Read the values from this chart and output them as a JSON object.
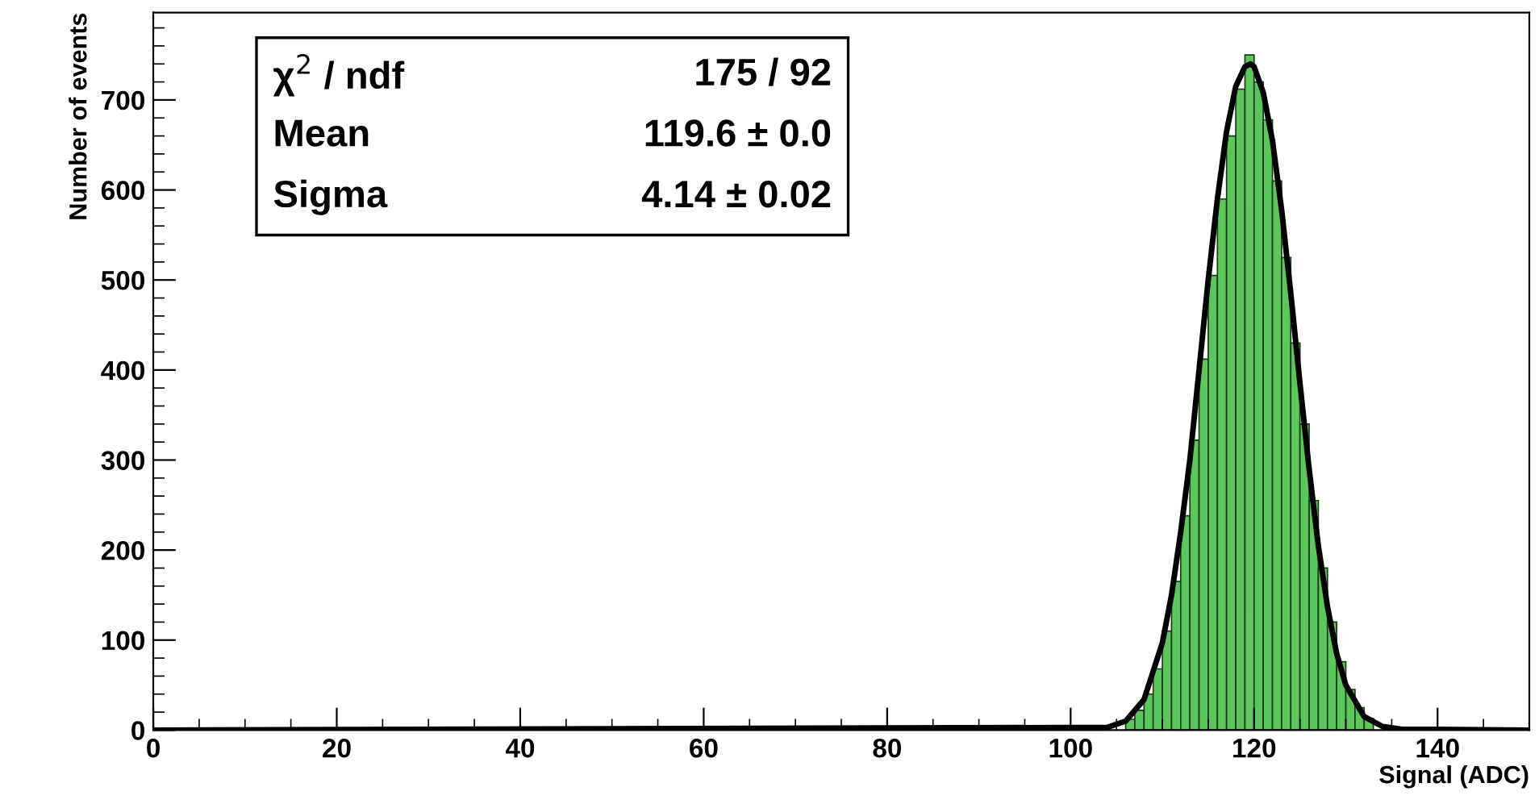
{
  "chart_data": {
    "type": "histogram",
    "xlabel": "Signal (ADC)",
    "ylabel": "Number of events",
    "series": [
      {
        "color": "#5cc65c",
        "bins": [
          106,
          107,
          108,
          109,
          110,
          111,
          112,
          113,
          114,
          115,
          116,
          117,
          118,
          119,
          120,
          121,
          122,
          123,
          124,
          125,
          126,
          127,
          128,
          129,
          130,
          131,
          132,
          133
        ],
        "values": [
          12,
          22,
          40,
          68,
          110,
          165,
          238,
          322,
          412,
          505,
          590,
          660,
          712,
          750,
          720,
          678,
          610,
          525,
          430,
          340,
          255,
          180,
          120,
          76,
          45,
          25,
          13
        ]
      },
      {
        "type": "line",
        "color": "#000000",
        "x": [
          0,
          104,
          106,
          108,
          110,
          111,
          112,
          113,
          114,
          115,
          116,
          117,
          118,
          119,
          119.6,
          120,
          121,
          122,
          123,
          124,
          125,
          126,
          127,
          128,
          129,
          130,
          132,
          134,
          136,
          150
        ],
        "values": [
          0,
          3,
          10,
          34,
          97,
          150,
          220,
          300,
          400,
          500,
          590,
          665,
          715,
          737,
          740,
          737,
          708,
          655,
          578,
          485,
          385,
          290,
          205,
          137,
          85,
          50,
          15,
          4,
          1,
          0
        ]
      }
    ],
    "xlim": [
      0,
      150
    ],
    "ylim": [
      0,
      797
    ],
    "xticks": [
      0,
      20,
      40,
      60,
      80,
      100,
      120,
      140
    ],
    "yticks": [
      0,
      100,
      200,
      300,
      400,
      500,
      600,
      700
    ],
    "grid": false,
    "annotations": [
      "χ$^{2}$ / ndf",
      "175 / 92",
      "Mean",
      "119.6 ± 0.0",
      "Sigma",
      "4.14 ± 0.02"
    ]
  }
}
